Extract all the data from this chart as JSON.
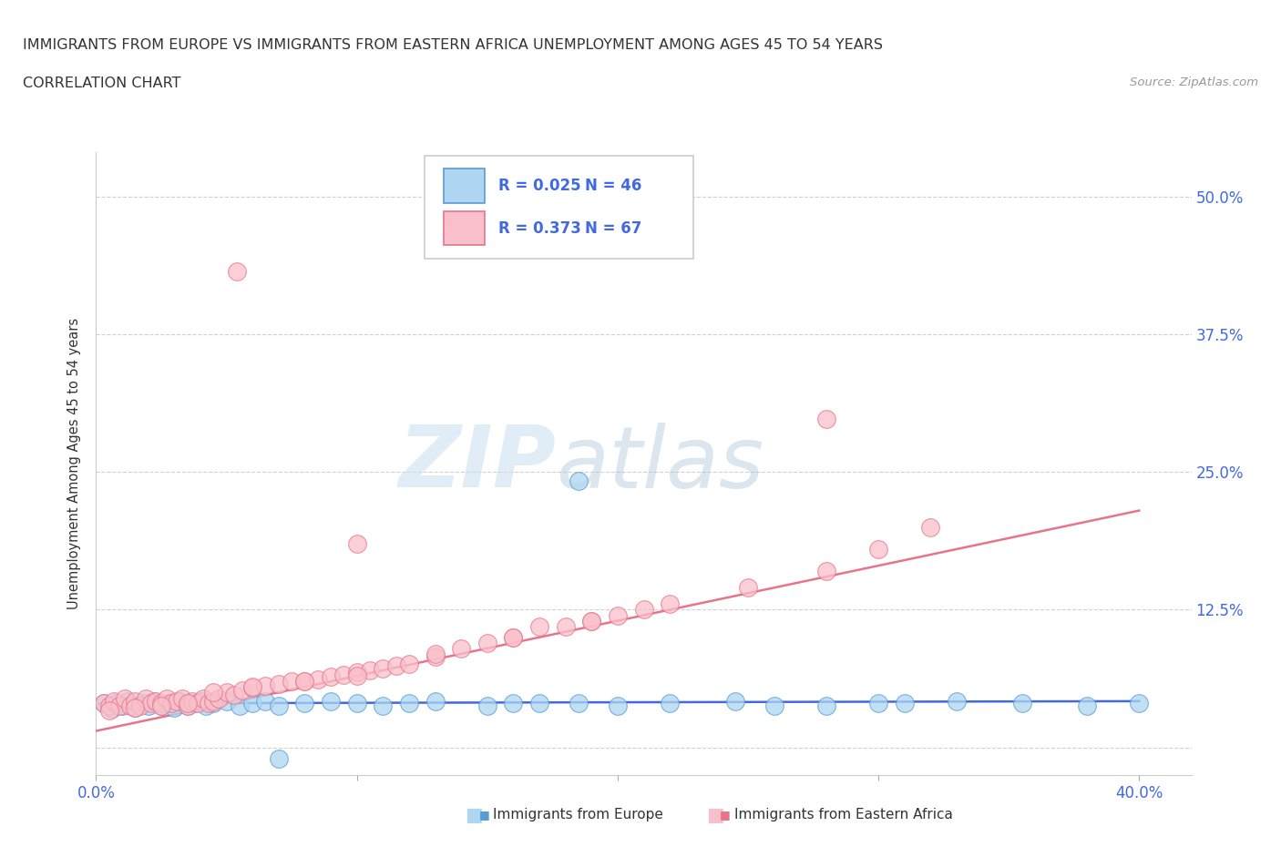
{
  "title_line1": "IMMIGRANTS FROM EUROPE VS IMMIGRANTS FROM EASTERN AFRICA UNEMPLOYMENT AMONG AGES 45 TO 54 YEARS",
  "title_line2": "CORRELATION CHART",
  "source_text": "Source: ZipAtlas.com",
  "ylabel": "Unemployment Among Ages 45 to 54 years",
  "xlim": [
    0.0,
    0.42
  ],
  "ylim": [
    -0.025,
    0.54
  ],
  "yticks": [
    0.0,
    0.125,
    0.25,
    0.375,
    0.5
  ],
  "yticklabels_right": [
    "",
    "12.5%",
    "25.0%",
    "37.5%",
    "50.0%"
  ],
  "xtick_left_label": "0.0%",
  "xtick_right_label": "40.0%",
  "grid_color": "#d0d0d0",
  "background_color": "#ffffff",
  "watermark_zip": "ZIP",
  "watermark_atlas": "atlas",
  "legend_R1": "0.025",
  "legend_N1": "46",
  "legend_R2": "0.373",
  "legend_N2": "67",
  "color_europe_fill": "#aed6f1",
  "color_europe_edge": "#5b9bd5",
  "color_africa_fill": "#f9c0cb",
  "color_africa_edge": "#e8748a",
  "line_color_europe": "#4169e1",
  "line_color_africa": "#e8748a",
  "text_color_blue": "#4169e1",
  "text_color_dark": "#333333",
  "text_color_gray": "#999999",
  "europe_x": [
    0.003,
    0.006,
    0.008,
    0.01,
    0.012,
    0.015,
    0.018,
    0.02,
    0.022,
    0.025,
    0.028,
    0.03,
    0.032,
    0.035,
    0.038,
    0.04,
    0.042,
    0.045,
    0.05,
    0.055,
    0.06,
    0.065,
    0.07,
    0.08,
    0.09,
    0.1,
    0.11,
    0.12,
    0.13,
    0.15,
    0.17,
    0.185,
    0.2,
    0.22,
    0.245,
    0.28,
    0.3,
    0.33,
    0.355,
    0.38,
    0.4,
    0.16,
    0.26,
    0.31,
    0.185,
    0.07
  ],
  "europe_y": [
    0.04,
    0.035,
    0.04,
    0.038,
    0.042,
    0.036,
    0.04,
    0.038,
    0.042,
    0.038,
    0.04,
    0.036,
    0.042,
    0.038,
    0.04,
    0.042,
    0.038,
    0.04,
    0.042,
    0.038,
    0.04,
    0.042,
    0.038,
    0.04,
    0.042,
    0.04,
    0.038,
    0.04,
    0.042,
    0.038,
    0.04,
    0.04,
    0.038,
    0.04,
    0.042,
    0.038,
    0.04,
    0.042,
    0.04,
    0.038,
    0.04,
    0.04,
    0.038,
    0.04,
    0.242,
    -0.01
  ],
  "africa_x": [
    0.003,
    0.005,
    0.007,
    0.009,
    0.011,
    0.013,
    0.015,
    0.017,
    0.019,
    0.021,
    0.023,
    0.025,
    0.027,
    0.029,
    0.031,
    0.033,
    0.035,
    0.037,
    0.039,
    0.041,
    0.043,
    0.045,
    0.047,
    0.05,
    0.053,
    0.056,
    0.06,
    0.065,
    0.07,
    0.075,
    0.08,
    0.085,
    0.09,
    0.095,
    0.1,
    0.105,
    0.11,
    0.115,
    0.12,
    0.13,
    0.14,
    0.15,
    0.16,
    0.17,
    0.18,
    0.19,
    0.2,
    0.21,
    0.22,
    0.25,
    0.28,
    0.3,
    0.054,
    0.32,
    0.005,
    0.015,
    0.025,
    0.035,
    0.045,
    0.06,
    0.08,
    0.1,
    0.13,
    0.16,
    0.19,
    0.1,
    0.28
  ],
  "africa_y": [
    0.04,
    0.038,
    0.042,
    0.038,
    0.044,
    0.038,
    0.042,
    0.038,
    0.044,
    0.04,
    0.042,
    0.04,
    0.044,
    0.04,
    0.042,
    0.044,
    0.038,
    0.042,
    0.04,
    0.044,
    0.04,
    0.042,
    0.044,
    0.05,
    0.048,
    0.052,
    0.054,
    0.056,
    0.058,
    0.06,
    0.06,
    0.062,
    0.064,
    0.066,
    0.068,
    0.07,
    0.072,
    0.074,
    0.076,
    0.082,
    0.09,
    0.095,
    0.1,
    0.11,
    0.11,
    0.115,
    0.12,
    0.125,
    0.13,
    0.145,
    0.16,
    0.18,
    0.432,
    0.2,
    0.034,
    0.036,
    0.038,
    0.04,
    0.05,
    0.055,
    0.06,
    0.065,
    0.085,
    0.1,
    0.115,
    0.185,
    0.298
  ]
}
